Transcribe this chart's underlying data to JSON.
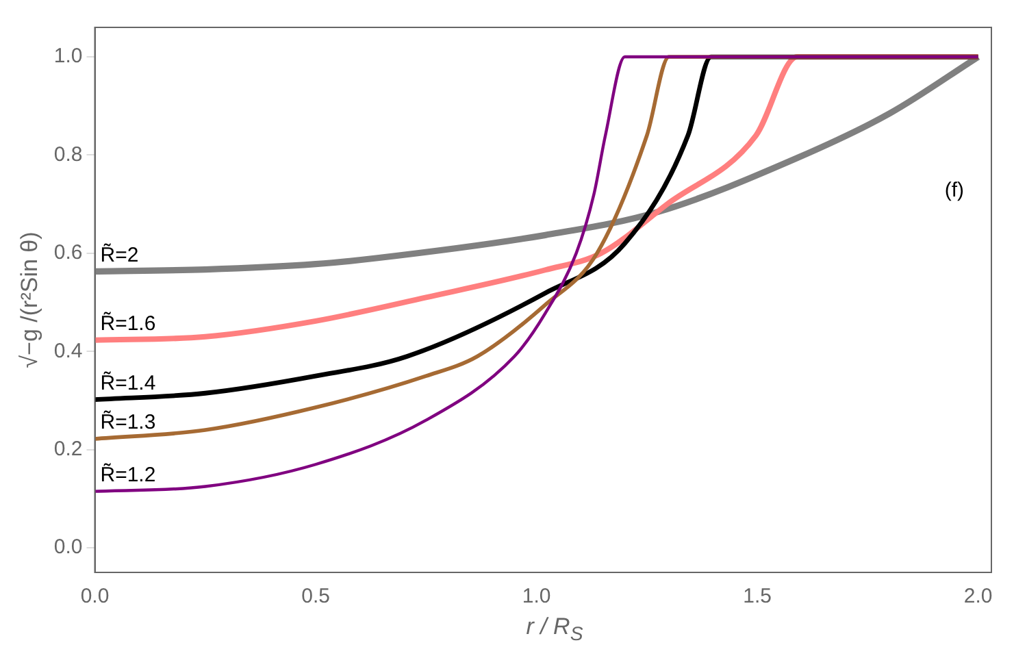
{
  "chart_data": {
    "type": "line",
    "xlabel": "r / R$_{S}$",
    "ylabel": "√−g /(r²Sin θ)",
    "xlim": [
      0,
      2.03
    ],
    "ylim": [
      -0.05,
      1.06
    ],
    "xticks": [
      {
        "value": 0,
        "label": "0.0"
      },
      0.5,
      {
        "value": 1,
        "label": "1.0"
      },
      1.5,
      {
        "value": 2,
        "label": "2.0"
      }
    ],
    "yticks": [
      {
        "value": 0,
        "label": "0.0"
      },
      0.2,
      0.4,
      0.6,
      0.8,
      {
        "value": 1,
        "label": "1.0"
      }
    ],
    "grid": false,
    "legend": false,
    "marker": "none",
    "line_style": "solid",
    "annotations": [
      "(f)"
    ],
    "series": [
      {
        "name": "R̃=1.2",
        "color": "#800080",
        "x": [
          0,
          0.25,
          0.5,
          0.75,
          0.95,
          1.02,
          1.09,
          1.13,
          1.156,
          1.2,
          2
        ],
        "values": [
          0.115,
          0.125,
          0.17,
          0.26,
          0.39,
          0.478,
          0.6,
          0.72,
          0.84,
          1.0,
          1.0
        ]
      },
      {
        "name": "R̃=1.3",
        "color": "#a66a33",
        "x": [
          0,
          0.25,
          0.5,
          0.75,
          0.866,
          1.02,
          1.137,
          1.25,
          1.3,
          2
        ],
        "values": [
          0.222,
          0.24,
          0.286,
          0.35,
          0.39,
          0.495,
          0.6,
          0.84,
          1.0,
          1.0
        ]
      },
      {
        "name": "R̃=1.4",
        "color": "#000000",
        "x": [
          0,
          0.25,
          0.5,
          0.707,
          1.02,
          1.2,
          1.343,
          1.395,
          2
        ],
        "values": [
          0.302,
          0.315,
          0.35,
          0.39,
          0.519,
          0.62,
          0.84,
          1.0,
          1.0
        ]
      },
      {
        "name": "R̃=1.6",
        "color": "#ff7f7f",
        "x": [
          0,
          0.25,
          0.5,
          0.75,
          1.02,
          1.146,
          1.296,
          1.497,
          1.59,
          2
        ],
        "values": [
          0.423,
          0.43,
          0.462,
          0.51,
          0.566,
          0.6,
          0.7,
          0.84,
          1.0,
          1.0
        ]
      },
      {
        "name": "R̃=2",
        "color": "#808080",
        "x": [
          0,
          0.25,
          0.5,
          0.637,
          1.02,
          1.274,
          1.59,
          1.8,
          2
        ],
        "values": [
          0.563,
          0.567,
          0.578,
          0.59,
          0.637,
          0.684,
          0.794,
          0.885,
          1.0
        ]
      }
    ]
  }
}
